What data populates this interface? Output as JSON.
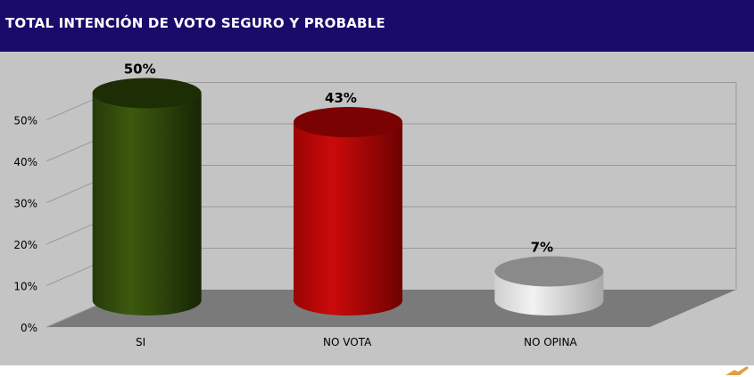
{
  "header": {
    "title": "TOTAL INTENCIÓN DE VOTO SEGURO Y PROBABLE"
  },
  "colors": {
    "header_bg": "#1a0b6b",
    "panel_bg": "#c4c4c4",
    "series": [
      "#2f4a08",
      "#b50505",
      "#d6d6d6"
    ]
  },
  "chart_data": {
    "type": "bar",
    "style": "3d-cylinder",
    "title": "TOTAL INTENCIÓN DE VOTO SEGURO Y PROBABLE",
    "categories": [
      "SI",
      "NO VOTA",
      "NO OPINA"
    ],
    "values": [
      50,
      43,
      7
    ],
    "value_labels": [
      "50%",
      "43%",
      "7%"
    ],
    "y_ticks": [
      "0%",
      "10%",
      "20%",
      "30%",
      "40%",
      "50%"
    ],
    "ylim": [
      0,
      50
    ],
    "grid": true,
    "legend": "none"
  }
}
